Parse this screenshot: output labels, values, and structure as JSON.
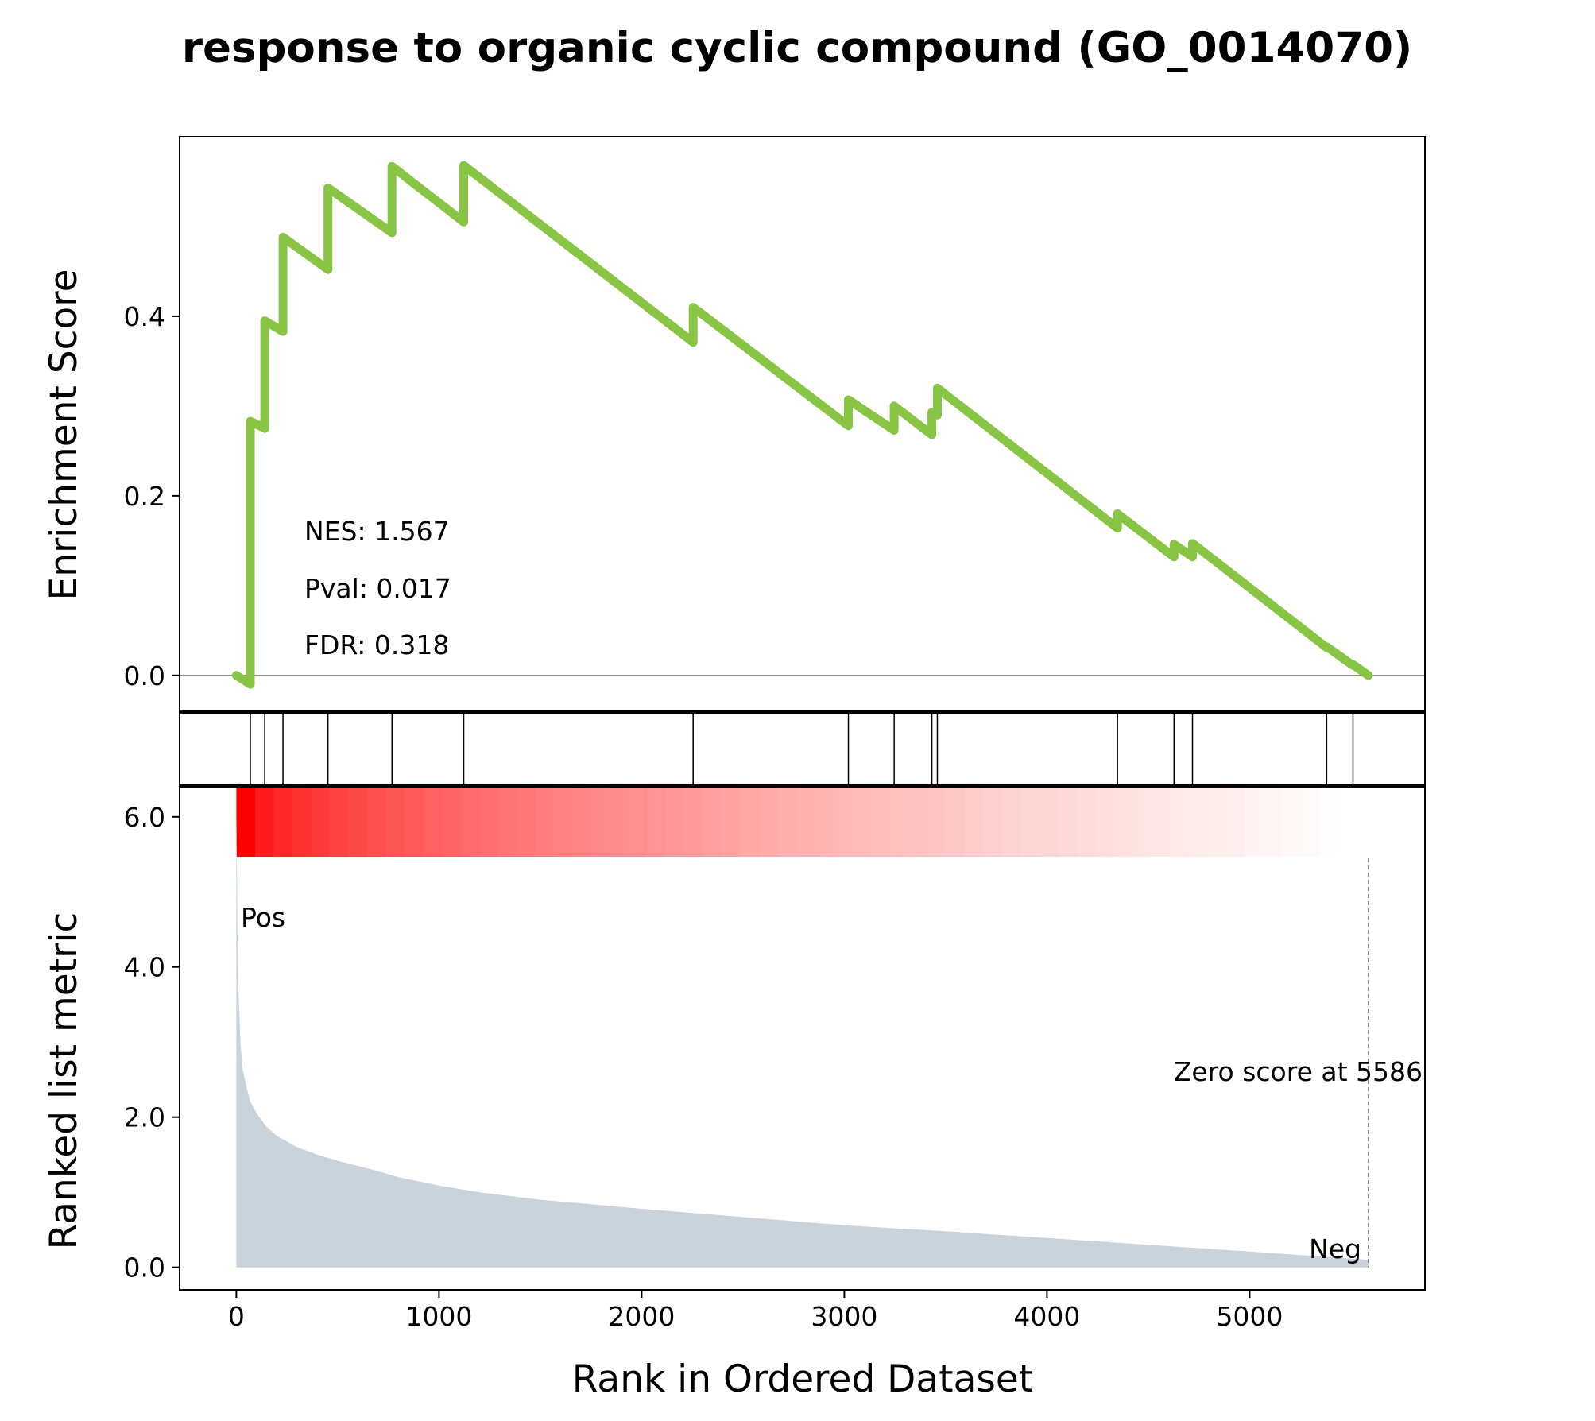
{
  "title": "response to organic cyclic compound (GO_0014070)",
  "colors": {
    "es_line": "#88c544",
    "hit_line": "#000000",
    "metric_fill": "#c8d3db",
    "heat_start": "#ff0000",
    "heat_end": "#ffffff",
    "pos_text": "#ff0000",
    "neg_text": "#0000ff"
  },
  "chart_data": [
    {
      "type": "line",
      "panel": "enrichment-score",
      "ylabel": "Enrichment Score",
      "ylim": [
        -0.04,
        0.6
      ],
      "xlim": [
        -280,
        5865
      ],
      "yticks": [
        "0.0",
        "0.2",
        "0.4"
      ],
      "ytick_values": [
        0.0,
        0.2,
        0.4
      ],
      "zero_line": true,
      "stats": {
        "nes": "NES: 1.567",
        "pval": "Pval: 0.017",
        "fdr": "FDR: 0.318"
      },
      "x": [
        0,
        69,
        69,
        69,
        140,
        140,
        230,
        230,
        452,
        452,
        768,
        768,
        1122,
        1122,
        2254,
        2254,
        3020,
        3020,
        3246,
        3246,
        3432,
        3432,
        3459,
        3459,
        4348,
        4348,
        4627,
        4627,
        4718,
        4718,
        5380,
        5380,
        5510,
        5510,
        5586
      ],
      "y": [
        0.0,
        -0.01,
        0.14,
        0.283,
        0.275,
        0.395,
        0.383,
        0.488,
        0.452,
        0.543,
        0.493,
        0.567,
        0.505,
        0.568,
        0.371,
        0.41,
        0.278,
        0.307,
        0.273,
        0.3,
        0.268,
        0.293,
        0.29,
        0.32,
        0.164,
        0.18,
        0.132,
        0.146,
        0.132,
        0.147,
        0.031,
        0.032,
        0.011,
        0.012,
        0.0
      ]
    },
    {
      "type": "hits",
      "panel": "gene-hits",
      "positions": [
        69,
        140,
        230,
        452,
        768,
        1122,
        2254,
        3020,
        3246,
        3432,
        3459,
        4348,
        4627,
        4718,
        5380,
        5510
      ]
    },
    {
      "type": "area",
      "panel": "ranked-list-metric",
      "ylabel": "Ranked list metric",
      "xlabel": "Rank in Ordered Dataset",
      "ylim": [
        -0.3,
        6.4
      ],
      "xlim": [
        -280,
        5865
      ],
      "yticks": [
        "0.0",
        "2.0",
        "4.0",
        "6.0"
      ],
      "ytick_values": [
        0.0,
        2.0,
        4.0,
        6.0
      ],
      "xticks": [
        "0",
        "1000",
        "2000",
        "3000",
        "4000",
        "5000"
      ],
      "xtick_values": [
        0,
        1000,
        2000,
        3000,
        4000,
        5000
      ],
      "x": [
        0,
        5,
        10,
        20,
        30,
        50,
        70,
        100,
        150,
        200,
        300,
        400,
        500,
        600,
        700,
        800,
        1000,
        1200,
        1500,
        2000,
        2500,
        3000,
        3500,
        4000,
        4500,
        5000,
        5586
      ],
      "y": [
        6.15,
        4.6,
        3.7,
        3.0,
        2.65,
        2.4,
        2.2,
        2.05,
        1.87,
        1.75,
        1.6,
        1.5,
        1.42,
        1.35,
        1.28,
        1.2,
        1.09,
        1.0,
        0.9,
        0.78,
        0.67,
        0.56,
        0.48,
        0.39,
        0.3,
        0.21,
        0.1
      ],
      "pos_label": "Pos",
      "neg_label": "Neg",
      "zero_cross_label": "Zero score at 5586",
      "zero_cross_x": 5586
    }
  ]
}
